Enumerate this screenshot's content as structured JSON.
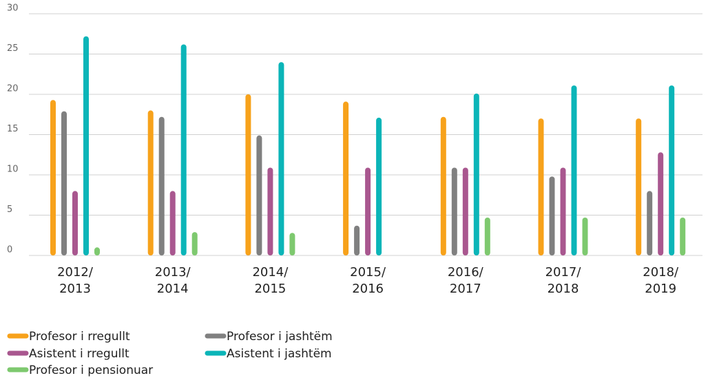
{
  "chart_data": {
    "type": "bar",
    "categories": [
      "2012/\n2013",
      "2013/\n2014",
      "2014/\n2015",
      "2015/\n2016",
      "2016/\n2017",
      "2017/\n2018",
      "2018/\n2019"
    ],
    "series": [
      {
        "name": "Profesor i rregullt",
        "color": "#f7a21b",
        "values": [
          19.3,
          18,
          20,
          19.1,
          17.2,
          17,
          17
        ]
      },
      {
        "name": "Profesor i jashtëm",
        "color": "#808080",
        "values": [
          17.9,
          17.2,
          14.9,
          3.7,
          10.9,
          9.8,
          8
        ]
      },
      {
        "name": "Asistent i rregullt",
        "color": "#a9578f",
        "values": [
          8,
          8,
          10.9,
          10.9,
          10.9,
          10.9,
          12.8
        ]
      },
      {
        "name": "Asistent i jashtëm",
        "color": "#0bb5b8",
        "values": [
          27.2,
          26.2,
          24,
          17.1,
          20.1,
          21.1,
          21.1
        ]
      },
      {
        "name": "Profesor i pensionuar",
        "color": "#7ec96f",
        "values": [
          1,
          2.9,
          2.8,
          null,
          4.7,
          4.7,
          4.7
        ]
      }
    ],
    "ylim": [
      0,
      30
    ],
    "yticks": [
      0,
      5,
      10,
      15,
      20,
      25,
      30
    ],
    "grid": true,
    "legend": "bottom"
  }
}
